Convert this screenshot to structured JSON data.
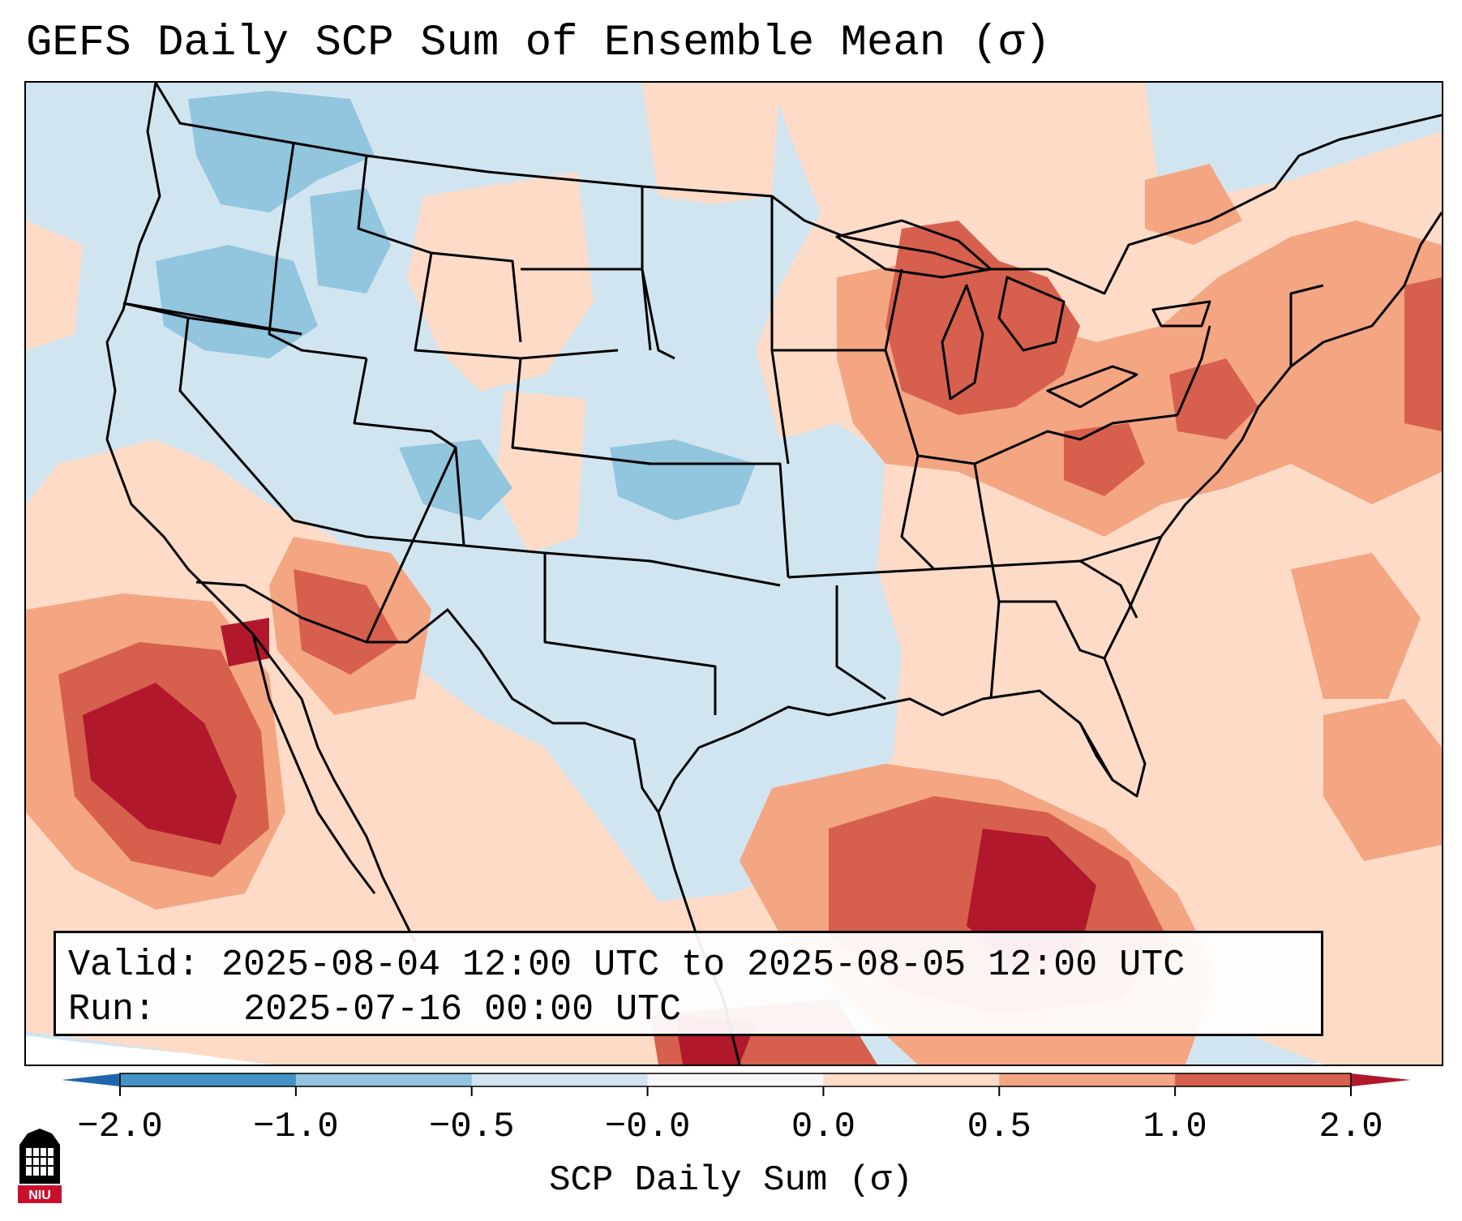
{
  "title": "GEFS Daily SCP Sum of Ensemble Mean (σ)",
  "info": {
    "valid_label": "Valid:",
    "valid_value": "2025-08-04 12:00 UTC to 2025-08-05 12:00 UTC",
    "run_label": "Run:",
    "run_value": "2025-07-16 00:00 UTC"
  },
  "colorbar": {
    "title": "SCP Daily Sum (σ)",
    "ticks": [
      "−2.0",
      "−1.0",
      "−0.5",
      "−0.0",
      "0.0",
      "0.5",
      "1.0",
      "2.0"
    ],
    "colors": [
      "#4393c3",
      "#92c5de",
      "#d1e5f0",
      "#f7f7f7",
      "#fddbc7",
      "#f4a582",
      "#d6604d"
    ],
    "extend_low_color": "#2166ac",
    "extend_high_color": "#b2182b"
  },
  "map": {
    "background_color": "#d1e5f0",
    "region": "Continental United States, southern Canada, northern Mexico, Gulf of Mexico"
  },
  "logo": {
    "text": "NIU"
  }
}
